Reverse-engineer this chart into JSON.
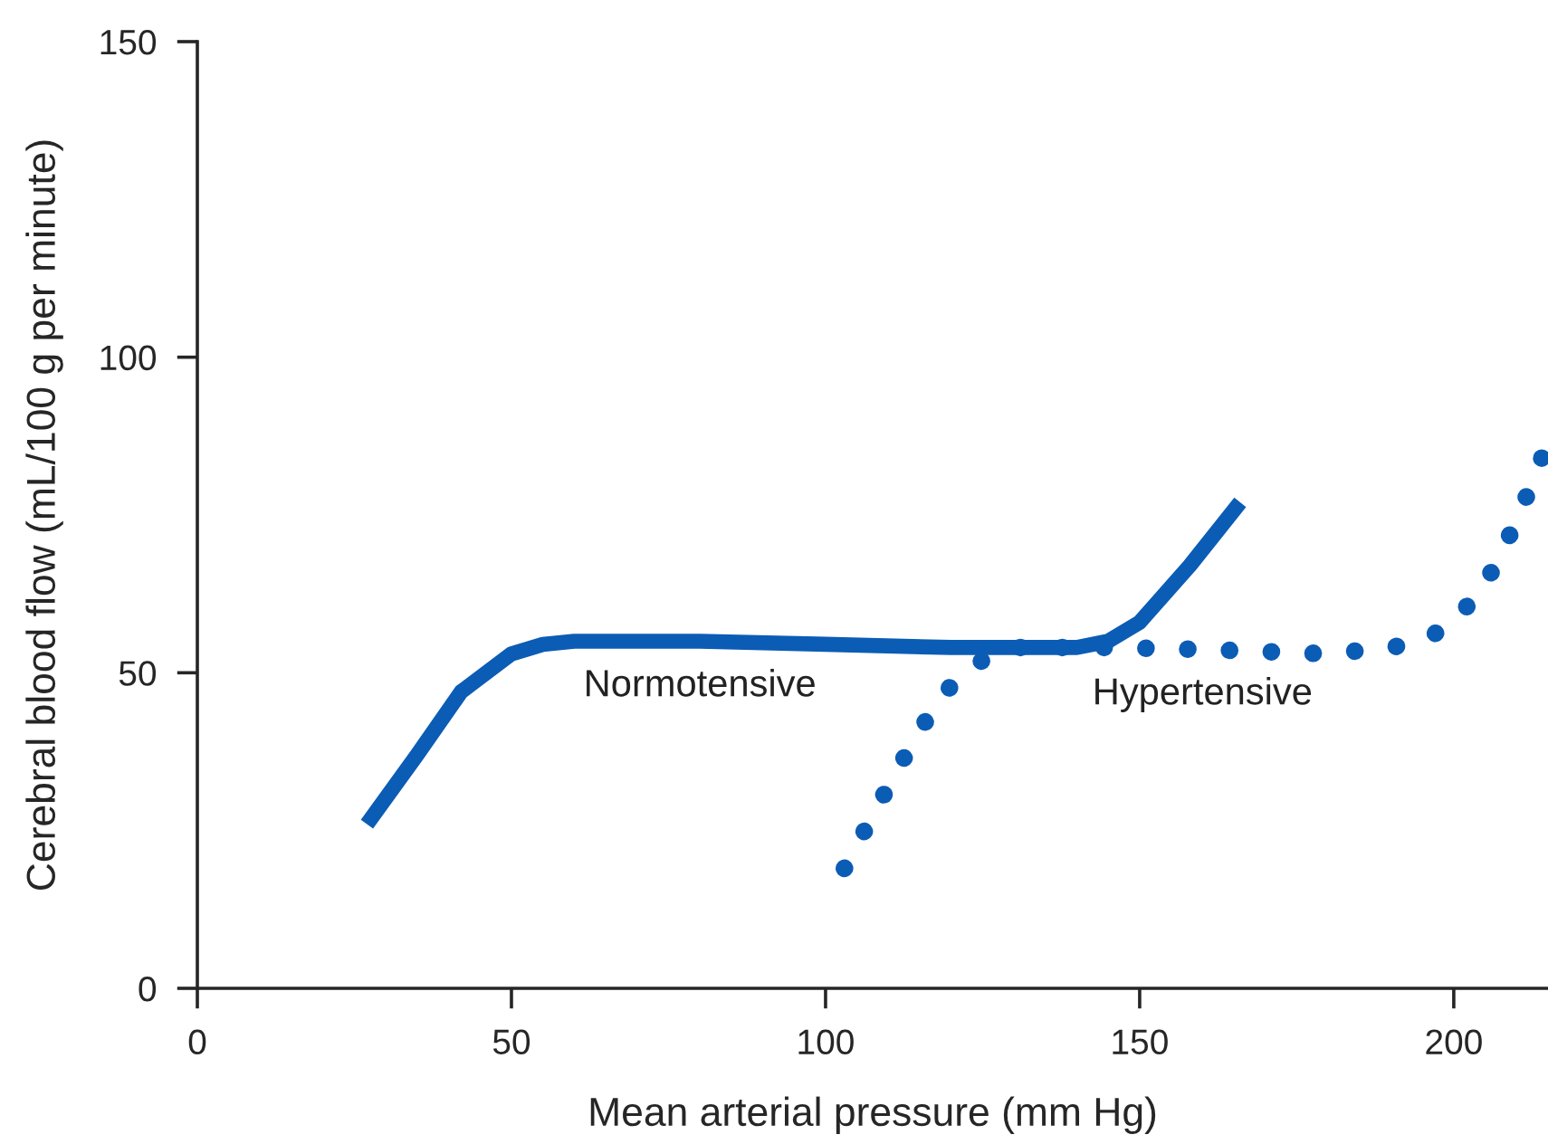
{
  "chart_data": {
    "type": "line",
    "xlabel": "Mean arterial pressure (mm Hg)",
    "ylabel": "Cerebral blood flow (mL/100 g per minute)",
    "xlim": [
      0,
      215
    ],
    "ylim": [
      0,
      150
    ],
    "xticks": [
      0,
      50,
      100,
      150,
      200
    ],
    "yticks": [
      0,
      50,
      100,
      150
    ],
    "grid": false,
    "legend": false,
    "marker": "none",
    "series": [
      {
        "name": "Normotensive",
        "color": "#0b5cb5",
        "line_style": "solid",
        "x": [
          27,
          35,
          42,
          50,
          55,
          60,
          70,
          80,
          100,
          120,
          140,
          145,
          150,
          158,
          166
        ],
        "values": [
          26,
          37,
          47,
          53,
          54.5,
          55,
          55,
          55,
          54.5,
          54,
          54,
          55,
          58,
          67,
          77
        ]
      },
      {
        "name": "Hypertensive",
        "color": "#0b5cb5",
        "line_style": "dotted",
        "x": [
          103,
          110,
          115,
          120,
          125,
          130,
          145,
          160,
          180,
          190,
          195,
          200,
          205,
          210,
          214
        ],
        "values": [
          19,
          32,
          41,
          48,
          52,
          54,
          54,
          53.7,
          53,
          54,
          55,
          58,
          64,
          74,
          84
        ]
      }
    ]
  }
}
